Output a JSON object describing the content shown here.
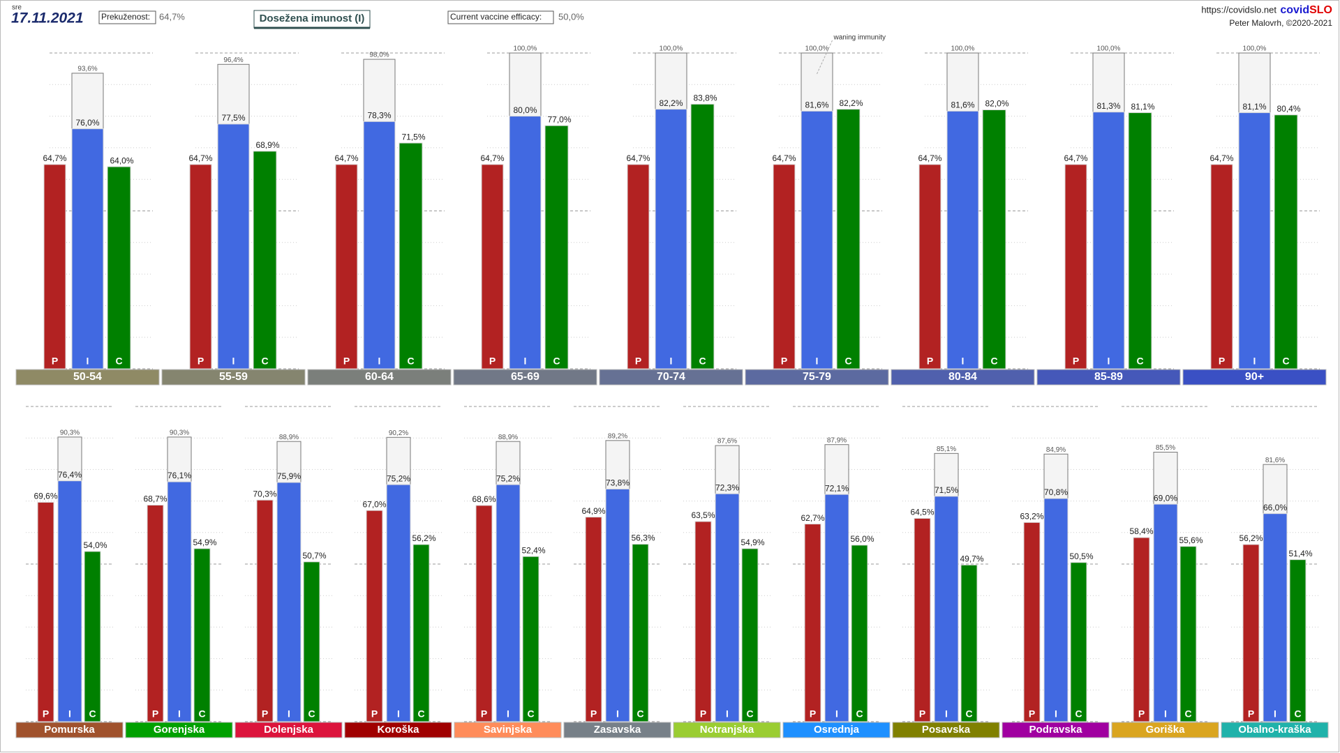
{
  "header": {
    "weekday": "sre",
    "date": "17.11.2021",
    "prekuzenost_label": "Prekuženost:",
    "prekuzenost_value": "64,7%",
    "title": "Dosežena imunost (I)",
    "efficacy_label": "Current vaccine efficacy:",
    "efficacy_value": "50,0%",
    "url": "https://covidslo.net",
    "brand_a": "covid",
    "brand_b": "SLO",
    "author": "Peter Malovrh, ©2020-2021"
  },
  "chart_data": [
    {
      "type": "bar",
      "annotation": "waning immunity",
      "categories": [
        "50-54",
        "55-59",
        "60-64",
        "65-69",
        "70-74",
        "75-79",
        "80-84",
        "85-89",
        "90+"
      ],
      "category_colors": [
        "#8f8a65",
        "#85856f",
        "#7b7f7b",
        "#717887",
        "#667194",
        "#5c6aa0",
        "#5060ad",
        "#4558b9",
        "#3a50c4"
      ],
      "ylim": [
        0,
        100
      ],
      "yticks": [
        0,
        10,
        20,
        30,
        40,
        50,
        60,
        70,
        80,
        90,
        100
      ],
      "grid": true,
      "waning_immunity": {
        "values": [
          93.6,
          96.4,
          98.0,
          100.0,
          100.0,
          100.0,
          100.0,
          100.0,
          100.0
        ],
        "value_labels": [
          "93,6%",
          "96,4%",
          "98,0%",
          "100,0%",
          "100,0%",
          "100,0%",
          "100,0%",
          "100,0%",
          "100,0%"
        ]
      },
      "series": [
        {
          "name": "P",
          "color": "#b22222",
          "values": [
            64.7,
            64.7,
            64.7,
            64.7,
            64.7,
            64.7,
            64.7,
            64.7,
            64.7
          ],
          "value_labels": [
            "64,7%",
            "64,7%",
            "64,7%",
            "64,7%",
            "64,7%",
            "64,7%",
            "64,7%",
            "64,7%",
            "64,7%"
          ]
        },
        {
          "name": "I",
          "color": "#4169e1",
          "values": [
            76.0,
            77.5,
            78.3,
            80.0,
            82.2,
            81.6,
            81.6,
            81.3,
            81.1
          ],
          "value_labels": [
            "76,0%",
            "77,5%",
            "78,3%",
            "80,0%",
            "82,2%",
            "81,6%",
            "81,6%",
            "81,3%",
            "81,1%"
          ]
        },
        {
          "name": "C",
          "color": "#008000",
          "values": [
            64.0,
            68.9,
            71.5,
            77.0,
            83.8,
            82.2,
            82.0,
            81.1,
            80.4
          ],
          "value_labels": [
            "64,0%",
            "68,9%",
            "71,5%",
            "77,0%",
            "83,8%",
            "82,2%",
            "82,0%",
            "81,1%",
            "80,4%"
          ]
        }
      ]
    },
    {
      "type": "bar",
      "categories": [
        "Pomurska",
        "Gorenjska",
        "Dolenjska",
        "Koroška",
        "Savinjska",
        "Zasavska",
        "Notranjska",
        "Osrednja",
        "Posavska",
        "Podravska",
        "Goriška",
        "Obalno-kraška"
      ],
      "category_colors": [
        "#a0522d",
        "#00a000",
        "#dc143c",
        "#a00000",
        "#ff8c5a",
        "#778088",
        "#9acd32",
        "#1e90ff",
        "#808000",
        "#a000a0",
        "#daa520",
        "#20b2aa"
      ],
      "ylim": [
        0,
        100
      ],
      "yticks": [
        0,
        10,
        20,
        30,
        40,
        50,
        60,
        70,
        80,
        90,
        100
      ],
      "grid": true,
      "waning_immunity": {
        "values": [
          90.3,
          90.3,
          88.9,
          90.2,
          88.9,
          89.2,
          87.6,
          87.9,
          85.1,
          84.9,
          85.5,
          81.6
        ],
        "value_labels": [
          "90,3%",
          "90,3%",
          "88,9%",
          "90,2%",
          "88,9%",
          "89,2%",
          "87,6%",
          "87,9%",
          "85,1%",
          "84,9%",
          "85,5%",
          "81,6%"
        ]
      },
      "series": [
        {
          "name": "P",
          "color": "#b22222",
          "values": [
            69.6,
            68.7,
            70.3,
            67.0,
            68.6,
            64.9,
            63.5,
            62.7,
            64.5,
            63.2,
            58.4,
            56.2
          ],
          "value_labels": [
            "69,6%",
            "68,7%",
            "70,3%",
            "67,0%",
            "68,6%",
            "64,9%",
            "63,5%",
            "62,7%",
            "64,5%",
            "63,2%",
            "58,4%",
            "56,2%"
          ]
        },
        {
          "name": "I",
          "color": "#4169e1",
          "values": [
            76.4,
            76.1,
            75.9,
            75.2,
            75.2,
            73.8,
            72.3,
            72.1,
            71.5,
            70.8,
            69.0,
            66.0
          ],
          "value_labels": [
            "76,4%",
            "76,1%",
            "75,9%",
            "75,2%",
            "75,2%",
            "73,8%",
            "72,3%",
            "72,1%",
            "71,5%",
            "70,8%",
            "69,0%",
            "66,0%"
          ]
        },
        {
          "name": "C",
          "color": "#008000",
          "values": [
            54.0,
            54.9,
            50.7,
            56.2,
            52.4,
            56.3,
            54.9,
            56.0,
            49.7,
            50.5,
            55.6,
            51.4
          ],
          "value_labels": [
            "54,0%",
            "54,9%",
            "50,7%",
            "56,2%",
            "52,4%",
            "56,3%",
            "54,9%",
            "56,0%",
            "49,7%",
            "50,5%",
            "55,6%",
            "51,4%"
          ]
        }
      ]
    }
  ]
}
